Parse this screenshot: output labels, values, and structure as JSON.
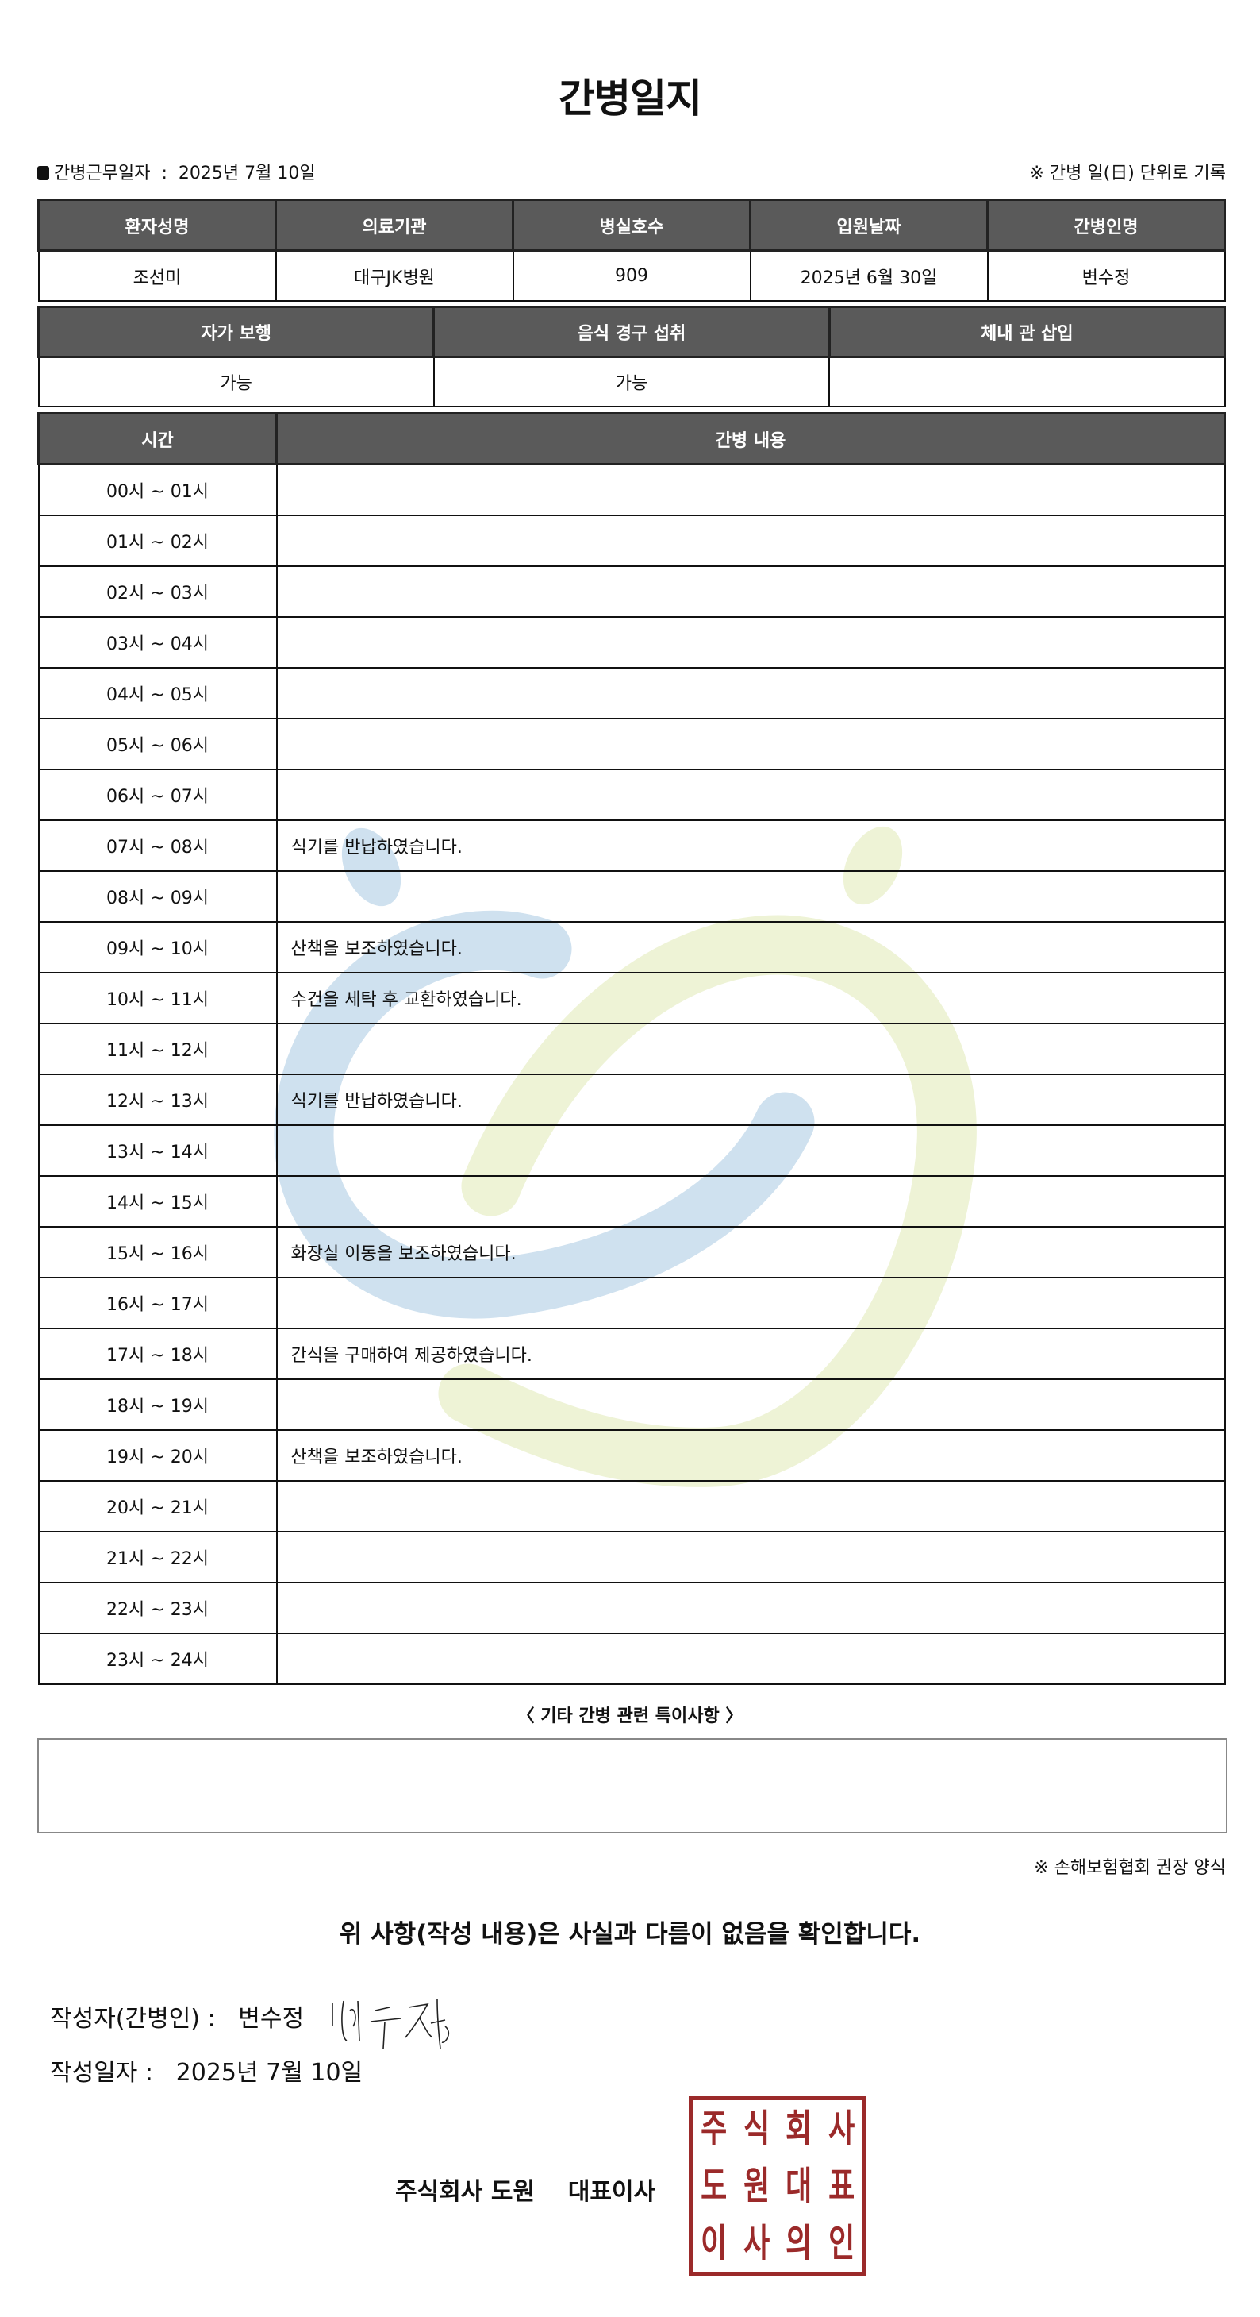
{
  "title": "간병일지",
  "info": {
    "label": "간병근무일자",
    "sep": ":",
    "date": "2025년 7월 10일",
    "note": "※ 간병 일(日) 단위로 기록"
  },
  "patient_table": {
    "headers": [
      "환자성명",
      "의료기관",
      "병실호수",
      "입원날짜",
      "간병인명"
    ],
    "values": [
      "조선미",
      "대구JK병원",
      "909",
      "2025년 6월 30일",
      "변수정"
    ]
  },
  "status_table": {
    "headers": [
      "자가 보행",
      "음식 경구 섭취",
      "체내 관 삽입"
    ],
    "values": [
      "가능",
      "가능",
      ""
    ]
  },
  "log_table": {
    "headers": [
      "시간",
      "간병 내용"
    ],
    "rows": [
      {
        "time": "00시 ~ 01시",
        "content": ""
      },
      {
        "time": "01시 ~ 02시",
        "content": ""
      },
      {
        "time": "02시 ~ 03시",
        "content": ""
      },
      {
        "time": "03시 ~ 04시",
        "content": ""
      },
      {
        "time": "04시 ~ 05시",
        "content": ""
      },
      {
        "time": "05시 ~ 06시",
        "content": ""
      },
      {
        "time": "06시 ~ 07시",
        "content": ""
      },
      {
        "time": "07시 ~ 08시",
        "content": "식기를 반납하였습니다."
      },
      {
        "time": "08시 ~ 09시",
        "content": ""
      },
      {
        "time": "09시 ~ 10시",
        "content": "산책을 보조하였습니다."
      },
      {
        "time": "10시 ~ 11시",
        "content": "수건을 세탁 후 교환하였습니다."
      },
      {
        "time": "11시 ~ 12시",
        "content": ""
      },
      {
        "time": "12시 ~ 13시",
        "content": "식기를 반납하였습니다."
      },
      {
        "time": "13시 ~ 14시",
        "content": ""
      },
      {
        "time": "14시 ~ 15시",
        "content": ""
      },
      {
        "time": "15시 ~ 16시",
        "content": "화장실 이동을 보조하였습니다."
      },
      {
        "time": "16시 ~ 17시",
        "content": ""
      },
      {
        "time": "17시 ~ 18시",
        "content": "간식을 구매하여 제공하였습니다."
      },
      {
        "time": "18시 ~ 19시",
        "content": ""
      },
      {
        "time": "19시 ~ 20시",
        "content": "산책을 보조하였습니다."
      },
      {
        "time": "20시 ~ 21시",
        "content": ""
      },
      {
        "time": "21시 ~ 22시",
        "content": ""
      },
      {
        "time": "22시 ~ 23시",
        "content": ""
      },
      {
        "time": "23시 ~ 24시",
        "content": ""
      }
    ]
  },
  "special": {
    "heading": "〈 기타 간병 관련 특이사항 〉",
    "content": ""
  },
  "footer_note": "※ 손해보험협회 권장 양식",
  "confirm": "위 사항(작성 내용)은 사실과 다름이 없음을 확인합니다.",
  "writer": {
    "label": "작성자(간병인) :",
    "name": "변수정",
    "signature": "변수정"
  },
  "written_date": {
    "label": "작성일자 :",
    "date": "2025년 7월 10일"
  },
  "company": {
    "name": "주식회사 도원",
    "title": "대표이사"
  },
  "stamp": {
    "chars": [
      "주",
      "식",
      "회",
      "사",
      "도",
      "원",
      "대",
      "표",
      "이",
      "사",
      "의",
      "인"
    ],
    "color": "#9b2a2a"
  },
  "colors": {
    "header_bg": "#5a5a5a",
    "watermark_blue": "#cfe1ef",
    "watermark_green": "#eef3d6"
  }
}
